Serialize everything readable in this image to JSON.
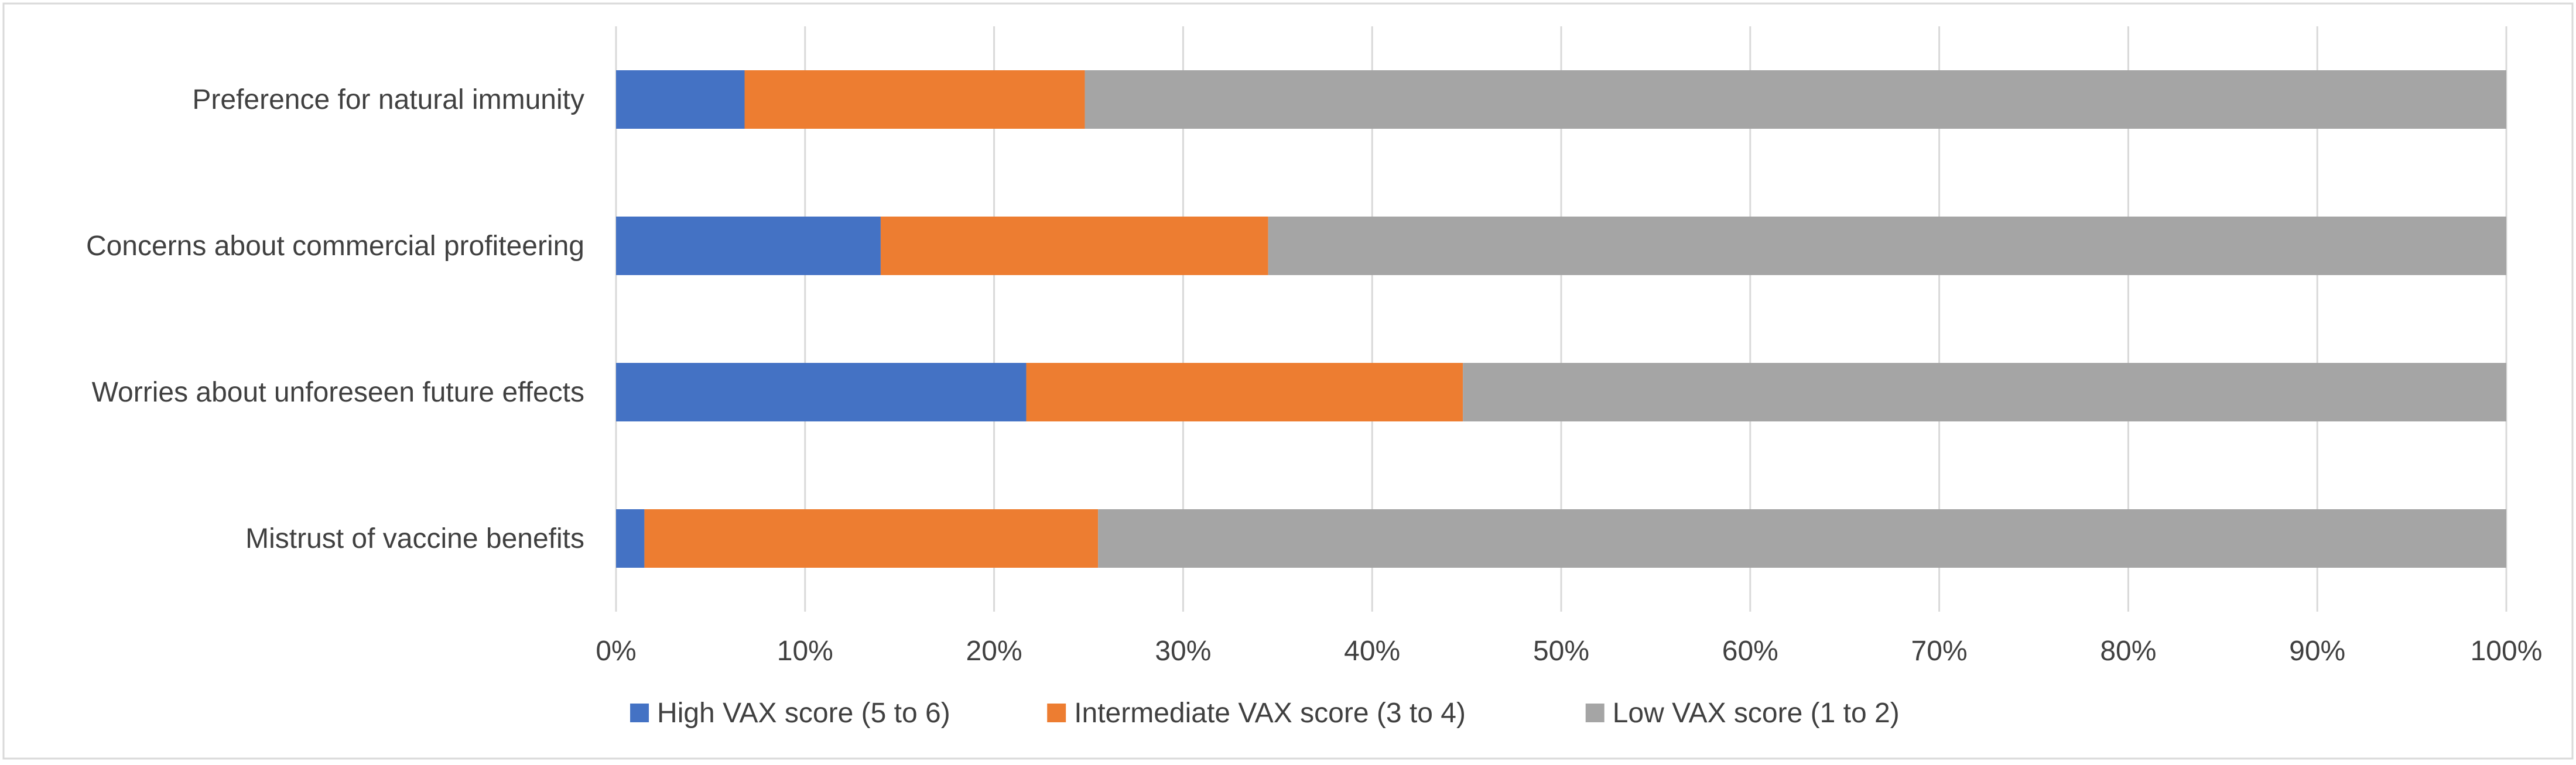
{
  "chart_data": {
    "type": "bar",
    "orientation": "horizontal",
    "stacked": "percent",
    "categories": [
      "Preference for natural immunity",
      "Concerns about commercial profiteering",
      "Worries about unforeseen future effects",
      "Mistrust of vaccine benefits"
    ],
    "series": [
      {
        "name": "High VAX score (5 to 6)",
        "color": "#4472C4",
        "values": [
          6.8,
          14.0,
          21.7,
          1.5
        ]
      },
      {
        "name": "Intermediate VAX score (3 to 4)",
        "color": "#ED7D31",
        "values": [
          18.0,
          20.5,
          23.1,
          24.0
        ]
      },
      {
        "name": "Low VAX score (1 to 2)",
        "color": "#A5A5A5",
        "values": [
          75.2,
          65.5,
          55.2,
          74.5
        ]
      }
    ],
    "xlim": [
      0,
      100
    ],
    "x_ticks": [
      "0%",
      "10%",
      "20%",
      "30%",
      "40%",
      "50%",
      "60%",
      "70%",
      "80%",
      "90%",
      "100%"
    ],
    "grid": true,
    "legend_position": "bottom",
    "title": "",
    "xlabel": "",
    "ylabel": ""
  }
}
